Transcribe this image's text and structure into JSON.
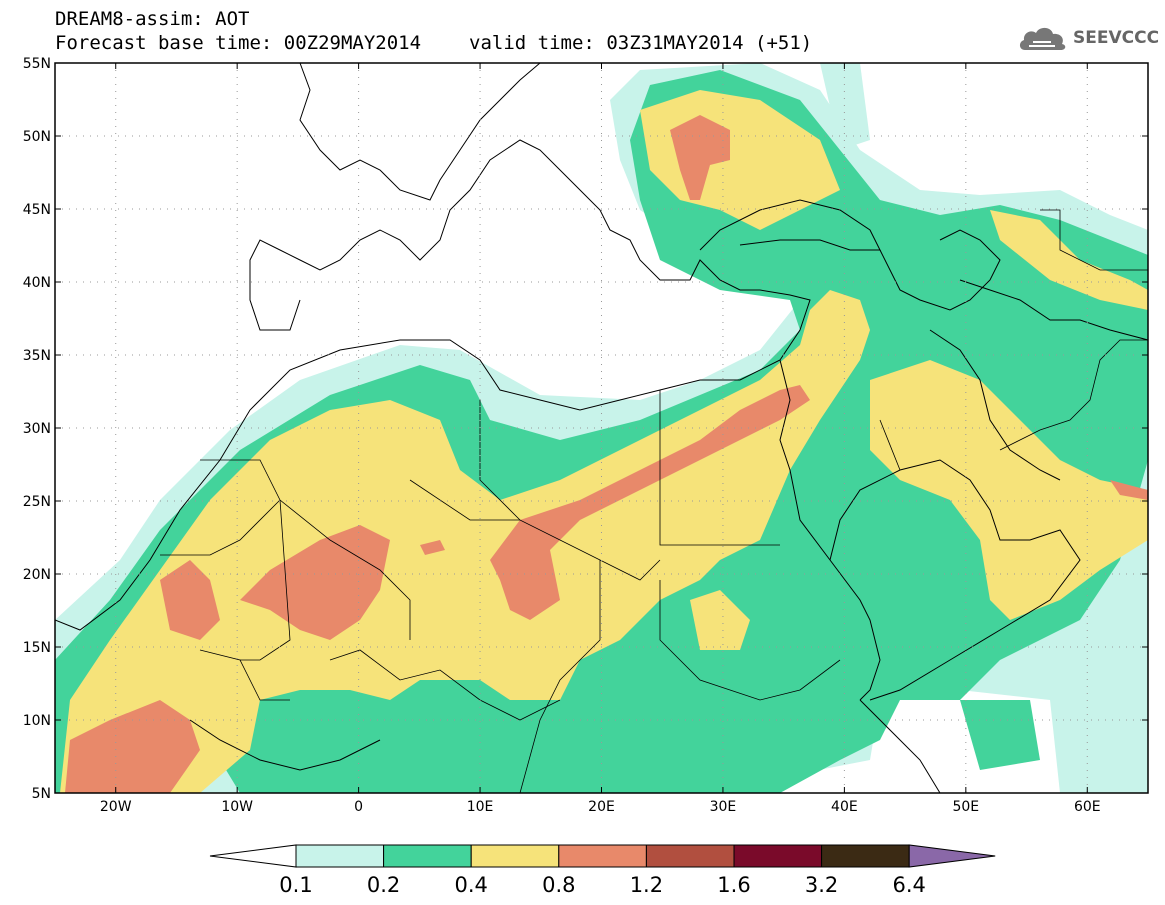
{
  "header": {
    "title": "DREAM8-assim: AOT",
    "base_time": "Forecast base time: 00Z29MAY2014",
    "valid_time": "valid time: 03Z31MAY2014 (+51)",
    "logo_text": "SEEVCCC",
    "logo_icon": "cloud-icon"
  },
  "axes": {
    "lat_labels": [
      "55N",
      "50N",
      "45N",
      "40N",
      "35N",
      "30N",
      "25N",
      "20N",
      "15N",
      "10N",
      "5N"
    ],
    "lat_values": [
      55,
      50,
      45,
      40,
      35,
      30,
      25,
      20,
      15,
      10,
      5
    ],
    "lon_labels": [
      "20W",
      "10W",
      "0",
      "10E",
      "20E",
      "30E",
      "40E",
      "50E",
      "60E"
    ],
    "lon_values": [
      -20,
      -10,
      0,
      10,
      20,
      30,
      40,
      50,
      60
    ],
    "lon_range": [
      -25,
      65
    ],
    "lat_range": [
      5,
      55
    ],
    "grid": "dotted"
  },
  "colorbar": {
    "labels": [
      "0.1",
      "0.2",
      "0.4",
      "0.8",
      "1.2",
      "1.6",
      "3.2",
      "6.4"
    ],
    "colors": [
      "#ffffff",
      "#c8f3ea",
      "#43d39b",
      "#f6e37a",
      "#e8896a",
      "#b14f3f",
      "#7a0a2a",
      "#3b2a14",
      "#8a68a8"
    ]
  },
  "map_colors": {
    "c01": "#c8f3ea",
    "c02": "#43d39b",
    "c04": "#f6e37a",
    "c08": "#e8896a"
  }
}
